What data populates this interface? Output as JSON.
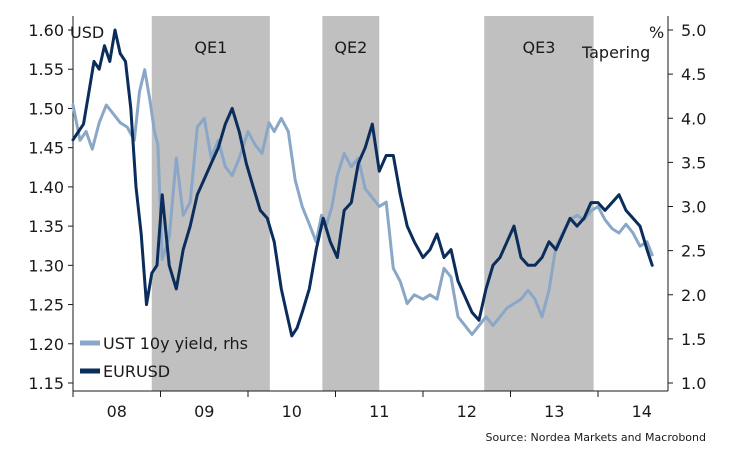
{
  "chart_data": {
    "type": "line",
    "title": "",
    "source": "Source: Nordea Markets and Macrobond",
    "left_axis": {
      "unit": "USD",
      "range": [
        1.15,
        1.6
      ],
      "ticks": [
        {
          "value": 1.15,
          "label": "1.15"
        },
        {
          "value": 1.2,
          "label": "1.20"
        },
        {
          "value": 1.25,
          "label": "1.25"
        },
        {
          "value": 1.3,
          "label": "1.30"
        },
        {
          "value": 1.35,
          "label": "1.35"
        },
        {
          "value": 1.4,
          "label": "1.40"
        },
        {
          "value": 1.45,
          "label": "1.45"
        },
        {
          "value": 1.5,
          "label": "1.50"
        },
        {
          "value": 1.55,
          "label": "1.55"
        },
        {
          "value": 1.6,
          "label": "1.60"
        }
      ]
    },
    "right_axis": {
      "unit": "%",
      "range": [
        1.0,
        5.0
      ],
      "ticks": [
        {
          "value": 1.0,
          "label": "1.0"
        },
        {
          "value": 1.5,
          "label": "1.5"
        },
        {
          "value": 2.0,
          "label": "2.0"
        },
        {
          "value": 2.5,
          "label": "2.5"
        },
        {
          "value": 3.0,
          "label": "3.0"
        },
        {
          "value": 3.5,
          "label": "3.5"
        },
        {
          "value": 4.0,
          "label": "4.0"
        },
        {
          "value": 4.5,
          "label": "4.5"
        },
        {
          "value": 5.0,
          "label": "5.0"
        }
      ]
    },
    "x_axis": {
      "range": [
        2008.0,
        2014.8
      ],
      "year_boundaries": [
        2008,
        2009,
        2010,
        2011,
        2012,
        2013,
        2014
      ],
      "labels": [
        {
          "value": 2008.5,
          "label": "08"
        },
        {
          "value": 2009.5,
          "label": "09"
        },
        {
          "value": 2010.5,
          "label": "10"
        },
        {
          "value": 2011.5,
          "label": "11"
        },
        {
          "value": 2012.5,
          "label": "12"
        },
        {
          "value": 2013.5,
          "label": "13"
        },
        {
          "value": 2014.5,
          "label": "14"
        }
      ]
    },
    "shaded_periods": [
      {
        "label": "QE1",
        "start": 2008.9,
        "end": 2010.25
      },
      {
        "label": "QE2",
        "start": 2010.85,
        "end": 2011.5
      },
      {
        "label": "QE3",
        "start": 2012.7,
        "end": 2013.95
      }
    ],
    "annotations": [
      {
        "label": "Tapering",
        "x": 2013.95
      }
    ],
    "legend": {
      "position": "bottom-left",
      "entries": [
        {
          "label": "UST 10y yield, rhs",
          "color": "#8aa7c8"
        },
        {
          "label": "EURUSD",
          "color": "#0b2d5b"
        }
      ]
    },
    "series": [
      {
        "name": "UST 10y yield, rhs",
        "axis": "right",
        "color": "#8aa7c8",
        "x": [
          2008.0,
          2008.08,
          2008.15,
          2008.22,
          2008.3,
          2008.38,
          2008.46,
          2008.54,
          2008.62,
          2008.7,
          2008.76,
          2008.82,
          2008.88,
          2008.93,
          2008.97,
          2009.02,
          2009.1,
          2009.18,
          2009.26,
          2009.34,
          2009.42,
          2009.5,
          2009.58,
          2009.66,
          2009.74,
          2009.82,
          2009.9,
          2010.0,
          2010.08,
          2010.16,
          2010.24,
          2010.3,
          2010.38,
          2010.46,
          2010.54,
          2010.62,
          2010.7,
          2010.78,
          2010.84,
          2010.9,
          2010.96,
          2011.02,
          2011.1,
          2011.18,
          2011.26,
          2011.34,
          2011.42,
          2011.5,
          2011.58,
          2011.66,
          2011.74,
          2011.82,
          2011.9,
          2012.0,
          2012.08,
          2012.16,
          2012.24,
          2012.32,
          2012.4,
          2012.48,
          2012.56,
          2012.64,
          2012.72,
          2012.8,
          2012.88,
          2012.96,
          2013.04,
          2013.12,
          2013.2,
          2013.28,
          2013.36,
          2013.44,
          2013.52,
          2013.6,
          2013.68,
          2013.76,
          2013.84,
          2013.92,
          2014.0,
          2014.08,
          2014.16,
          2014.24,
          2014.32,
          2014.4,
          2014.48,
          2014.56,
          2014.62
        ],
        "values": [
          4.15,
          3.75,
          3.85,
          3.65,
          3.95,
          4.15,
          4.05,
          3.95,
          3.9,
          3.75,
          4.3,
          4.55,
          4.2,
          3.85,
          3.7,
          2.4,
          2.65,
          3.55,
          2.9,
          3.05,
          3.9,
          4.0,
          3.55,
          3.75,
          3.45,
          3.35,
          3.55,
          3.85,
          3.7,
          3.6,
          3.95,
          3.85,
          4.0,
          3.85,
          3.3,
          3.0,
          2.8,
          2.6,
          2.9,
          2.8,
          3.0,
          3.35,
          3.6,
          3.45,
          3.55,
          3.2,
          3.1,
          3.0,
          3.05,
          2.3,
          2.15,
          1.9,
          2.0,
          1.95,
          2.0,
          1.95,
          2.3,
          2.2,
          1.75,
          1.65,
          1.55,
          1.65,
          1.75,
          1.65,
          1.75,
          1.85,
          1.9,
          1.95,
          2.05,
          1.95,
          1.75,
          2.05,
          2.55,
          2.7,
          2.85,
          2.9,
          2.85,
          2.95,
          3.0,
          2.85,
          2.75,
          2.7,
          2.8,
          2.7,
          2.55,
          2.6,
          2.45
        ]
      },
      {
        "name": "EURUSD",
        "axis": "left",
        "color": "#0b2d5b",
        "x": [
          2008.0,
          2008.06,
          2008.12,
          2008.18,
          2008.24,
          2008.3,
          2008.36,
          2008.42,
          2008.48,
          2008.54,
          2008.6,
          2008.66,
          2008.72,
          2008.78,
          2008.84,
          2008.9,
          2008.96,
          2009.02,
          2009.1,
          2009.18,
          2009.26,
          2009.34,
          2009.42,
          2009.5,
          2009.58,
          2009.66,
          2009.74,
          2009.82,
          2009.9,
          2009.98,
          2010.06,
          2010.14,
          2010.22,
          2010.3,
          2010.38,
          2010.44,
          2010.5,
          2010.56,
          2010.62,
          2010.7,
          2010.78,
          2010.86,
          2010.94,
          2011.02,
          2011.1,
          2011.18,
          2011.26,
          2011.34,
          2011.42,
          2011.5,
          2011.58,
          2011.66,
          2011.74,
          2011.82,
          2011.9,
          2012.0,
          2012.08,
          2012.16,
          2012.24,
          2012.32,
          2012.4,
          2012.48,
          2012.56,
          2012.64,
          2012.72,
          2012.8,
          2012.88,
          2012.96,
          2013.04,
          2013.12,
          2013.2,
          2013.28,
          2013.36,
          2013.44,
          2013.52,
          2013.6,
          2013.68,
          2013.76,
          2013.84,
          2013.92,
          2014.0,
          2014.08,
          2014.16,
          2014.24,
          2014.32,
          2014.4,
          2014.48,
          2014.56,
          2014.62
        ],
        "values": [
          1.46,
          1.47,
          1.48,
          1.52,
          1.56,
          1.55,
          1.58,
          1.56,
          1.6,
          1.57,
          1.56,
          1.5,
          1.4,
          1.34,
          1.25,
          1.29,
          1.3,
          1.39,
          1.3,
          1.27,
          1.32,
          1.35,
          1.39,
          1.41,
          1.43,
          1.45,
          1.48,
          1.5,
          1.47,
          1.43,
          1.4,
          1.37,
          1.36,
          1.33,
          1.27,
          1.24,
          1.21,
          1.22,
          1.24,
          1.27,
          1.32,
          1.36,
          1.33,
          1.31,
          1.37,
          1.38,
          1.43,
          1.45,
          1.48,
          1.42,
          1.44,
          1.44,
          1.39,
          1.35,
          1.33,
          1.31,
          1.32,
          1.34,
          1.31,
          1.32,
          1.28,
          1.26,
          1.24,
          1.23,
          1.27,
          1.3,
          1.31,
          1.33,
          1.35,
          1.31,
          1.3,
          1.3,
          1.31,
          1.33,
          1.32,
          1.34,
          1.36,
          1.35,
          1.36,
          1.38,
          1.38,
          1.37,
          1.38,
          1.39,
          1.37,
          1.36,
          1.35,
          1.32,
          1.3
        ]
      }
    ]
  }
}
